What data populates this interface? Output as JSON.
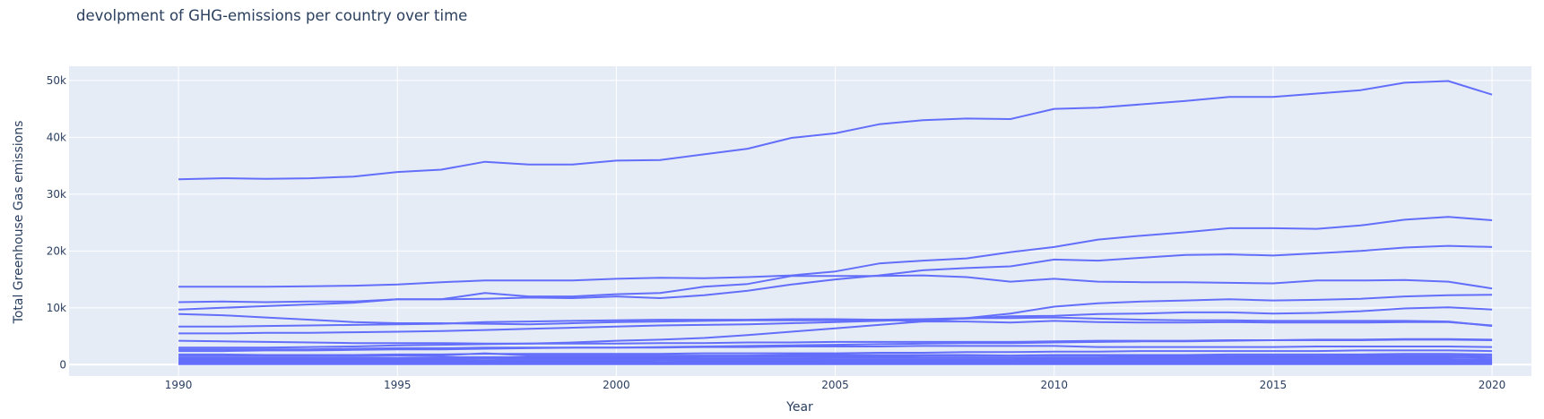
{
  "chart_data": {
    "type": "line",
    "title": "devolpment of GHG-emissions per country over time",
    "xlabel": "Year",
    "ylabel": "Total Greenhouse Gas emissions",
    "xlim": [
      1987.5,
      2020.9
    ],
    "ylim": [
      -2000,
      52500
    ],
    "xticks": [
      1990,
      1995,
      2000,
      2005,
      2010,
      2015,
      2020
    ],
    "xtick_labels": [
      "1990",
      "1995",
      "2000",
      "2005",
      "2010",
      "2015",
      "2020"
    ],
    "yticks": [
      0,
      10000,
      20000,
      30000,
      40000,
      50000
    ],
    "ytick_labels": [
      "0",
      "10k",
      "20k",
      "30k",
      "40k",
      "50k"
    ],
    "grid": true,
    "line_color": "#636efa",
    "plot_bg": "#e5ecf6",
    "x": [
      1990,
      1991,
      1992,
      1993,
      1994,
      1995,
      1996,
      1997,
      1998,
      1999,
      2000,
      2001,
      2002,
      2003,
      2004,
      2005,
      2006,
      2007,
      2008,
      2009,
      2010,
      2011,
      2012,
      2013,
      2014,
      2015,
      2016,
      2017,
      2018,
      2019,
      2020
    ],
    "series": [
      {
        "values": [
          32600,
          32800,
          32700,
          32800,
          33100,
          33900,
          34300,
          35700,
          35200,
          35200,
          35900,
          36000,
          37000,
          38000,
          39900,
          40700,
          42300,
          43000,
          43300,
          43200,
          45000,
          45200,
          45800,
          46400,
          47100,
          47100,
          47700,
          48300,
          49600,
          49900,
          47500
        ]
      },
      {
        "values": [
          13700,
          13700,
          13700,
          13800,
          13900,
          14100,
          14500,
          14800,
          14800,
          14800,
          15100,
          15300,
          15200,
          15400,
          15700,
          16400,
          17800,
          18300,
          18700,
          19800,
          20700,
          22000,
          22700,
          23300,
          24000,
          24000,
          23900,
          24500,
          25500,
          26000,
          25400
        ]
      },
      {
        "values": [
          9700,
          10000,
          10300,
          10600,
          10900,
          11500,
          11500,
          11600,
          11800,
          11700,
          12000,
          11700,
          12200,
          13000,
          14100,
          15000,
          15700,
          16600,
          17000,
          17300,
          18500,
          18300,
          18800,
          19300,
          19400,
          19200,
          19600,
          20000,
          20600,
          20900,
          20700
        ]
      },
      {
        "values": [
          11000,
          11100,
          11000,
          11100,
          11100,
          11500,
          11500,
          12600,
          12000,
          12000,
          12400,
          12600,
          13700,
          14200,
          15600,
          15600,
          15600,
          15700,
          15400,
          14600,
          15100,
          14600,
          14500,
          14500,
          14400,
          14300,
          14800,
          14800,
          14900,
          14600,
          13400
        ]
      },
      {
        "values": [
          8900,
          8700,
          8300,
          7900,
          7500,
          7300,
          7300,
          7200,
          7100,
          7300,
          7500,
          7600,
          7700,
          7800,
          7800,
          7800,
          7900,
          8000,
          8200,
          8200,
          8300,
          8100,
          7900,
          7800,
          7800,
          7700,
          7700,
          7700,
          7700,
          7600,
          6800
        ]
      },
      {
        "values": [
          6700,
          6700,
          6800,
          6900,
          7000,
          7100,
          7200,
          7500,
          7600,
          7700,
          7800,
          7900,
          7900,
          7900,
          8000,
          8000,
          7900,
          7600,
          7600,
          7400,
          7700,
          7500,
          7400,
          7400,
          7500,
          7400,
          7400,
          7400,
          7500,
          7500,
          6900
        ]
      },
      {
        "values": [
          5500,
          5500,
          5600,
          5600,
          5700,
          5800,
          5900,
          6100,
          6300,
          6500,
          6700,
          6900,
          7000,
          7100,
          7300,
          7500,
          7700,
          7900,
          8100,
          8500,
          8600,
          8900,
          9000,
          9200,
          9200,
          9000,
          9100,
          9400,
          9900,
          10100,
          9700
        ]
      },
      {
        "values": [
          4200,
          4100,
          4000,
          3900,
          3800,
          3800,
          3800,
          3700,
          3700,
          3700,
          3700,
          3800,
          3800,
          3900,
          3900,
          4000,
          4000,
          4000,
          4000,
          4000,
          4100,
          4200,
          4200,
          4200,
          4300,
          4300,
          4400,
          4400,
          4500,
          4500,
          4400
        ]
      },
      {
        "values": [
          3000,
          3000,
          3000,
          3100,
          3200,
          3400,
          3500,
          3600,
          3700,
          3900,
          4200,
          4400,
          4700,
          5200,
          5800,
          6400,
          7000,
          7600,
          8200,
          9000,
          10200,
          10800,
          11100,
          11300,
          11500,
          11300,
          11400,
          11600,
          12000,
          12200,
          12300
        ]
      },
      {
        "values": [
          2700,
          2700,
          2700,
          2700,
          2800,
          2900,
          2900,
          3000,
          3000,
          3000,
          3000,
          3000,
          3100,
          3100,
          3200,
          3200,
          3200,
          3300,
          3300,
          3300,
          3300,
          3100,
          3100,
          3100,
          3100,
          3100,
          3200,
          3200,
          3200,
          3200,
          3100
        ]
      },
      {
        "values": [
          2400,
          2400,
          2500,
          2500,
          2600,
          2700,
          2700,
          2800,
          2900,
          3000,
          3000,
          3100,
          3200,
          3300,
          3400,
          3500,
          3600,
          3700,
          3800,
          3800,
          3900,
          4000,
          4100,
          4100,
          4200,
          4300,
          4300,
          4300,
          4400,
          4400,
          4300
        ]
      },
      {
        "values": [
          1800,
          1800,
          1700,
          1700,
          1700,
          1800,
          1800,
          1900,
          1900,
          1900,
          1900,
          1900,
          2000,
          2000,
          2000,
          2000,
          2100,
          2100,
          2200,
          2200,
          2300,
          2300,
          2400,
          2400,
          2400,
          2400,
          2400,
          2500,
          2500,
          2500,
          2400
        ]
      },
      {
        "values": [
          1500,
          1500,
          1500,
          1500,
          1500,
          1600,
          1600,
          2000,
          1600,
          1600,
          1600,
          1600,
          1600,
          1600,
          1700,
          1700,
          1700,
          1700,
          1700,
          1600,
          1700,
          1700,
          1700,
          1700,
          1800,
          1800,
          1800,
          1800,
          1900,
          1900,
          1800
        ]
      },
      {
        "values": [
          1200,
          1200,
          1200,
          1200,
          1200,
          1200,
          1300,
          1300,
          1300,
          1300,
          1300,
          1300,
          1400,
          1400,
          1400,
          1400,
          1400,
          1500,
          1500,
          1500,
          1500,
          1500,
          1500,
          1500,
          1500,
          1500,
          1500,
          1600,
          1600,
          1600,
          1500
        ]
      },
      {
        "values": [
          1000,
          1000,
          1000,
          1000,
          1000,
          1000,
          1000,
          1100,
          1100,
          1100,
          1100,
          1100,
          1100,
          1100,
          1100,
          1200,
          1200,
          1200,
          1200,
          1200,
          1200,
          1200,
          1300,
          1300,
          1300,
          1300,
          1300,
          1300,
          1300,
          1300,
          1200
        ]
      },
      {
        "values": [
          800,
          800,
          800,
          800,
          800,
          800,
          800,
          800,
          900,
          900,
          900,
          900,
          900,
          900,
          900,
          900,
          900,
          900,
          900,
          900,
          1000,
          1000,
          1000,
          1000,
          1000,
          1000,
          1000,
          1000,
          1000,
          1000,
          900
        ]
      },
      {
        "values": [
          600,
          600,
          600,
          600,
          600,
          600,
          600,
          600,
          600,
          600,
          600,
          700,
          700,
          700,
          700,
          700,
          700,
          700,
          700,
          700,
          700,
          700,
          700,
          700,
          700,
          700,
          700,
          700,
          700,
          700,
          700
        ]
      },
      {
        "values": [
          400,
          400,
          400,
          400,
          400,
          400,
          400,
          400,
          400,
          400,
          400,
          400,
          500,
          500,
          500,
          500,
          500,
          500,
          500,
          500,
          500,
          500,
          500,
          500,
          500,
          500,
          500,
          500,
          500,
          500,
          500
        ]
      },
      {
        "values": [
          250,
          250,
          250,
          250,
          250,
          250,
          250,
          250,
          250,
          250,
          250,
          250,
          250,
          300,
          300,
          300,
          300,
          300,
          300,
          300,
          300,
          300,
          300,
          300,
          300,
          300,
          300,
          300,
          300,
          300,
          300
        ]
      },
      {
        "values": [
          100,
          100,
          100,
          100,
          100,
          100,
          100,
          100,
          100,
          100,
          100,
          100,
          100,
          100,
          100,
          100,
          100,
          100,
          100,
          100,
          100,
          100,
          100,
          100,
          100,
          100,
          100,
          100,
          100,
          100,
          100
        ]
      }
    ]
  }
}
